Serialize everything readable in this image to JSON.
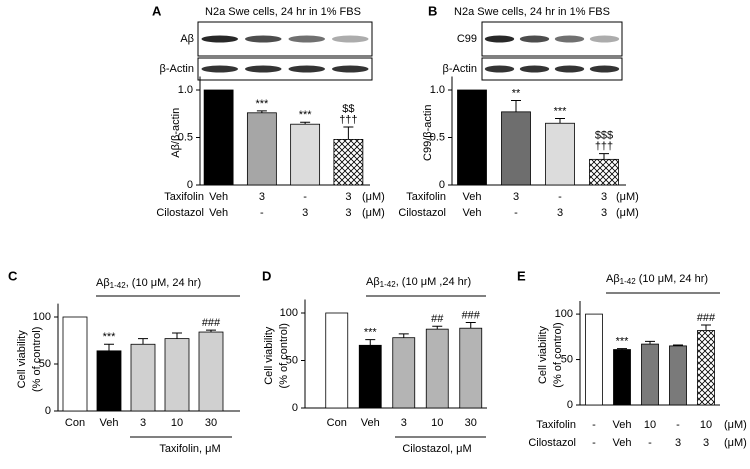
{
  "chart_data": [
    {
      "type": "bar",
      "panel": "A",
      "title": "N2a Swe cells, 24 hr in 1% FBS",
      "blots": [
        "Aβ",
        "β-Actin"
      ],
      "ylabel": [
        "Aβ/β-actin"
      ],
      "ylim": [
        0,
        1.1
      ],
      "yticks": [
        0,
        0.5,
        {
          "value": 1,
          "label": "1.0"
        }
      ],
      "values": [
        1.0,
        0.76,
        0.64,
        0.48
      ],
      "errors": [
        null,
        0.02,
        0.02,
        0.13
      ],
      "colors": [
        "#000000",
        "#a6a6a6",
        "#dcdcdc",
        "hatch"
      ],
      "annotations": [
        null,
        [
          "***"
        ],
        [
          "***"
        ],
        [
          "$$",
          "†††"
        ]
      ],
      "treatments": [
        {
          "name": "Taxifolin",
          "labels": [
            "Veh",
            "3",
            "-",
            "3"
          ],
          "unit": "(μM)"
        },
        {
          "name": "Cilostazol",
          "labels": [
            "Veh",
            "-",
            "3",
            "3"
          ],
          "unit": "(μM)"
        }
      ]
    },
    {
      "type": "bar",
      "panel": "B",
      "title": "N2a Swe cells, 24 hr in 1% FBS",
      "blots": [
        "C99",
        "β-Actin"
      ],
      "ylabel": [
        "C99/β-actin"
      ],
      "ylim": [
        0,
        1.1
      ],
      "yticks": [
        0,
        0.5,
        {
          "value": 1,
          "label": "1.0"
        }
      ],
      "values": [
        1.0,
        0.77,
        0.65,
        0.27
      ],
      "errors": [
        null,
        0.12,
        0.05,
        0.06
      ],
      "colors": [
        "#000000",
        "#6e6e6e",
        "#dcdcdc",
        "hatch"
      ],
      "annotations": [
        null,
        [
          "**"
        ],
        [
          "***"
        ],
        [
          "$$$",
          "†††"
        ]
      ],
      "treatments": [
        {
          "name": "Taxifolin",
          "labels": [
            "Veh",
            "3",
            "-",
            "3"
          ],
          "unit": "(μM)"
        },
        {
          "name": "Cilostazol",
          "labels": [
            "Veh",
            "-",
            "3",
            "3"
          ],
          "unit": "(μM)"
        }
      ]
    },
    {
      "type": "bar",
      "panel": "C",
      "header": [
        "Aβ",
        "1-42",
        ", (10 μM, 24 hr)"
      ],
      "ylabel": [
        "Cell viability",
        "(% of control)"
      ],
      "ylim": [
        0,
        110
      ],
      "yticks": [
        0,
        50,
        100
      ],
      "categories": [
        "Con",
        "Veh",
        "3",
        "10",
        "30"
      ],
      "xlabel": "Taxifolin, μM",
      "values": [
        100,
        64,
        71,
        77,
        84
      ],
      "errors": [
        null,
        7,
        6,
        6,
        2
      ],
      "colors": [
        "#ffffff",
        "#000000",
        "#d0d0d0",
        "#d0d0d0",
        "#d0d0d0"
      ],
      "annotations": [
        null,
        [
          "***"
        ],
        null,
        null,
        [
          "###"
        ]
      ]
    },
    {
      "type": "bar",
      "panel": "D",
      "header": [
        "Aβ",
        "1-42",
        ", (10 μM ,24 hr)"
      ],
      "ylabel": [
        "Cell viability",
        "(% of control)"
      ],
      "ylim": [
        0,
        110
      ],
      "yticks": [
        0,
        50,
        100
      ],
      "categories": [
        "Con",
        "Veh",
        "3",
        "10",
        "30"
      ],
      "xlabel": "Cilostazol, μM",
      "values": [
        100,
        66,
        74,
        83,
        84
      ],
      "errors": [
        null,
        6,
        4,
        3,
        6
      ],
      "colors": [
        "#ffffff",
        "#000000",
        "#b4b4b4",
        "#b4b4b4",
        "#b4b4b4"
      ],
      "annotations": [
        null,
        [
          "***"
        ],
        null,
        [
          "##"
        ],
        [
          "###"
        ]
      ]
    },
    {
      "type": "bar",
      "panel": "E",
      "header": [
        "Aβ",
        "1-42",
        " (10 μM, 24 hr)"
      ],
      "ylabel": [
        "Cell viability",
        "(% of control)"
      ],
      "ylim": [
        0,
        110
      ],
      "yticks": [
        0,
        50,
        100
      ],
      "values": [
        100,
        61,
        67,
        65,
        82
      ],
      "errors": [
        null,
        1,
        3,
        1,
        6
      ],
      "colors": [
        "#ffffff",
        "#000000",
        "#7a7a7a",
        "#7a7a7a",
        "hatch"
      ],
      "annotations": [
        null,
        [
          "***"
        ],
        null,
        null,
        [
          "###"
        ]
      ],
      "treatments": [
        {
          "name": "Taxifolin",
          "labels": [
            "-",
            "Veh",
            "10",
            "-",
            "10"
          ],
          "unit": "(μM)"
        },
        {
          "name": "Cilostazol",
          "labels": [
            "-",
            "Veh",
            "-",
            "3",
            "3"
          ],
          "unit": "(μM)"
        }
      ]
    }
  ]
}
